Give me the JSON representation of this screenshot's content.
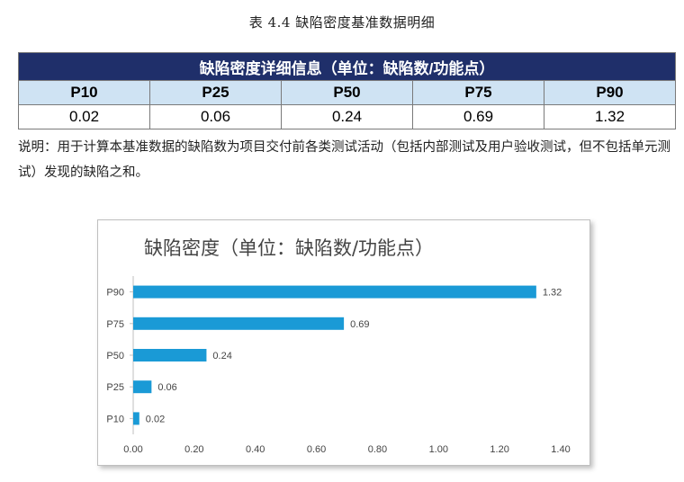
{
  "caption": "表 4.4  缺陷密度基准数据明细",
  "table": {
    "title": "缺陷密度详细信息（单位：缺陷数/功能点）",
    "columns": [
      "P10",
      "P25",
      "P50",
      "P75",
      "P90"
    ],
    "values": [
      "0.02",
      "0.06",
      "0.24",
      "0.69",
      "1.32"
    ]
  },
  "note": "说明：用于计算本基准数据的缺陷数为项目交付前各类测试活动（包括内部测试及用户验收测试，但不包括单元测试）发现的缺陷之和。",
  "colors": {
    "bar": "#1a9ad6",
    "table_header": "#1f2f6a",
    "table_subheader": "#cfe3f3"
  },
  "chart_data": {
    "type": "bar",
    "orientation": "horizontal",
    "title": "缺陷密度（单位：缺陷数/功能点）",
    "categories": [
      "P10",
      "P25",
      "P50",
      "P75",
      "P90"
    ],
    "values": [
      0.02,
      0.06,
      0.24,
      0.69,
      1.32
    ],
    "data_labels": [
      "0.02",
      "0.06",
      "0.24",
      "0.69",
      "1.32"
    ],
    "xlim": [
      0,
      1.4
    ],
    "xticks": [
      "0.00",
      "0.20",
      "0.40",
      "0.60",
      "0.80",
      "1.00",
      "1.20",
      "1.40"
    ],
    "grid": false,
    "legend": "none"
  }
}
